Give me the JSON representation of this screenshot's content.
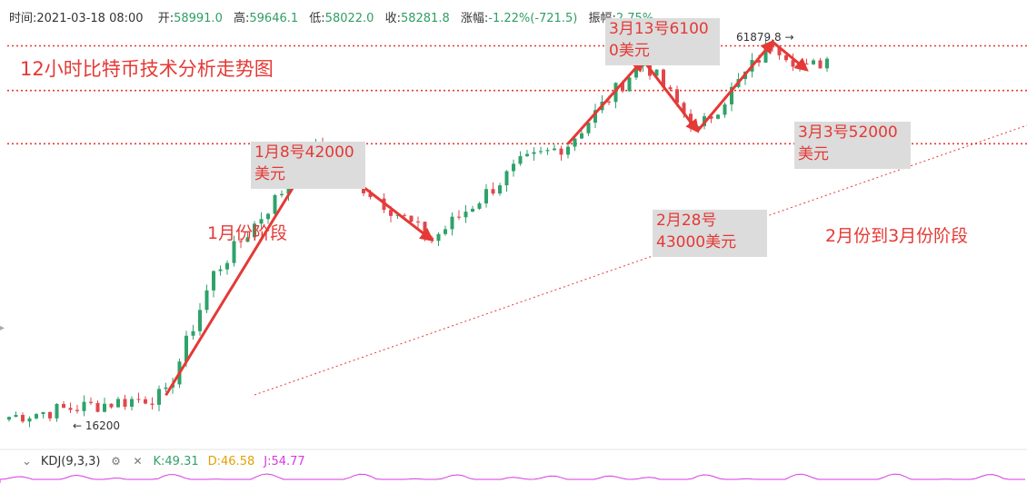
{
  "ohlc": {
    "time_label": "时间:",
    "time": "2021-03-18 08:00",
    "open_label": "开:",
    "open": "58991.0",
    "high_label": "高:",
    "high": "59646.1",
    "low_label": "低:",
    "low": "58022.0",
    "close_label": "收:",
    "close": "58281.8",
    "change_label": "涨幅:",
    "change": "-1.22%(-721.5)",
    "amplitude_label": "振幅:",
    "amplitude": "2.75%"
  },
  "title": "12小时比特币技术分析走势图",
  "phases": {
    "jan": "1月份阶段",
    "feb_mar": "2月份到3月份阶段"
  },
  "annotations": {
    "jan8": "1月8号42000\n美元",
    "mar13": "3月13号6100\n0美元",
    "feb28": "2月28号\n43000美元",
    "mar3": "3月3号52000\n美元"
  },
  "markers": {
    "high": "61879.8",
    "low": "16200"
  },
  "kdj": {
    "name": "KDJ(9,3,3)",
    "k": "K:49.31",
    "d": "D:46.58",
    "j": "J:54.77"
  },
  "colors": {
    "up": "#2fa26a",
    "down": "#e0474c",
    "annotation": "#e53935",
    "annotation_bg": "#dcdcdc"
  },
  "chart_data": {
    "type": "candlestick",
    "unit": "USD",
    "key_points": [
      {
        "label": "1月8号",
        "price": 42000
      },
      {
        "label": "2月28号",
        "price": 43000
      },
      {
        "label": "3月3号",
        "price": 52000
      },
      {
        "label": "3月13号",
        "price": 61000
      }
    ],
    "max_marker": 61879.8,
    "min_marker": 16200,
    "horizontal_levels": [
      61000,
      52000,
      43000
    ],
    "approx_trajectory": [
      {
        "i": 0,
        "close": 16200
      },
      {
        "i": 23,
        "close": 17500
      },
      {
        "i": 30,
        "close": 27000
      },
      {
        "i": 45,
        "close": 42000
      },
      {
        "i": 62,
        "close": 30500
      },
      {
        "i": 75,
        "close": 40000
      },
      {
        "i": 82,
        "close": 43000
      },
      {
        "i": 93,
        "close": 58000
      },
      {
        "i": 101,
        "close": 45000
      },
      {
        "i": 112,
        "close": 61879.8
      },
      {
        "i": 117,
        "close": 56000
      },
      {
        "i": 120,
        "close": 58281.8
      }
    ]
  }
}
